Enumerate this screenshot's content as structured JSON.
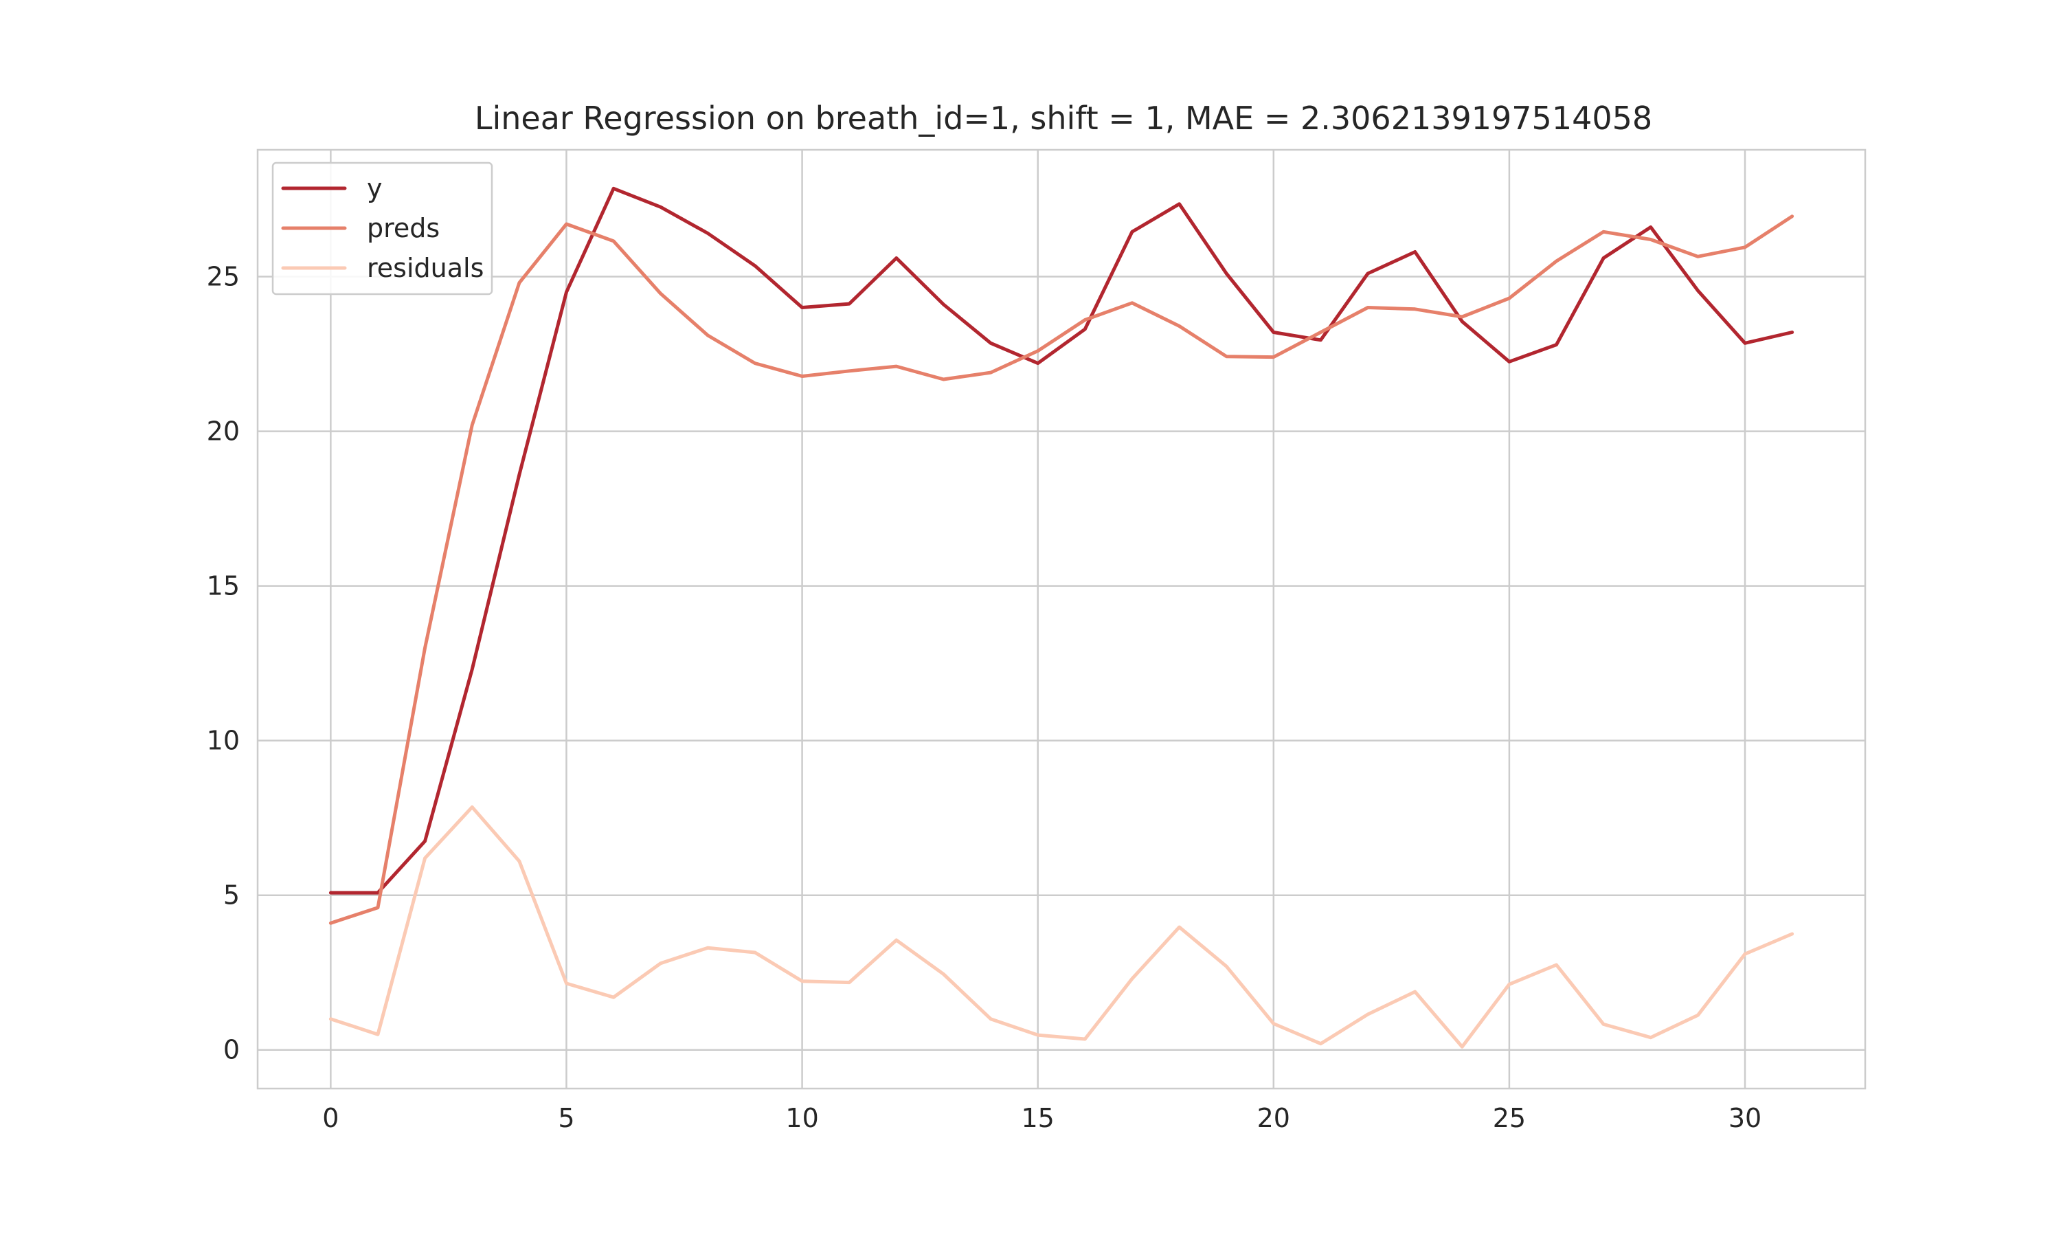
{
  "chart_data": {
    "type": "line",
    "title": "Linear Regression on breath_id=1, shift = 1, MAE = 2.3062139197514058",
    "xlabel": "",
    "ylabel": "",
    "xlim": [
      -1.55,
      32.55
    ],
    "ylim": [
      -1.25,
      29.1
    ],
    "xticks": [
      0,
      5,
      10,
      15,
      20,
      25,
      30
    ],
    "yticks": [
      0,
      5,
      10,
      15,
      20,
      25
    ],
    "grid": true,
    "legend_position": "upper-left",
    "x": [
      0,
      1,
      2,
      3,
      4,
      5,
      6,
      7,
      8,
      9,
      10,
      11,
      12,
      13,
      14,
      15,
      16,
      17,
      18,
      19,
      20,
      21,
      22,
      23,
      24,
      25,
      26,
      27,
      28,
      29,
      30,
      31
    ],
    "series": [
      {
        "name": "y",
        "color": "#b2262f",
        "values": [
          5.08,
          5.08,
          6.75,
          12.3,
          18.6,
          24.5,
          27.85,
          27.25,
          26.4,
          25.35,
          24.0,
          24.12,
          25.6,
          24.1,
          22.85,
          22.2,
          23.3,
          26.45,
          27.35,
          25.1,
          23.2,
          22.95,
          25.1,
          25.8,
          23.55,
          22.25,
          22.8,
          25.6,
          26.6,
          24.55,
          22.85,
          23.2
        ]
      },
      {
        "name": "preds",
        "color": "#e6806a",
        "values": [
          4.1,
          4.6,
          13.0,
          20.2,
          24.8,
          26.7,
          26.15,
          24.45,
          23.1,
          22.2,
          21.78,
          21.95,
          22.1,
          21.68,
          21.9,
          22.6,
          23.6,
          24.15,
          23.4,
          22.42,
          22.4,
          23.2,
          24.0,
          23.95,
          23.7,
          24.3,
          25.5,
          26.45,
          26.2,
          25.65,
          25.95,
          26.95
        ]
      },
      {
        "name": "residuals",
        "color": "#fbcab4",
        "values": [
          1.0,
          0.5,
          6.2,
          7.85,
          6.1,
          2.15,
          1.7,
          2.8,
          3.3,
          3.15,
          2.22,
          2.18,
          3.55,
          2.45,
          1.0,
          0.48,
          0.35,
          2.3,
          3.97,
          2.7,
          0.85,
          0.2,
          1.15,
          1.88,
          0.1,
          2.12,
          2.75,
          0.83,
          0.4,
          1.12,
          3.1,
          3.75
        ]
      }
    ]
  }
}
